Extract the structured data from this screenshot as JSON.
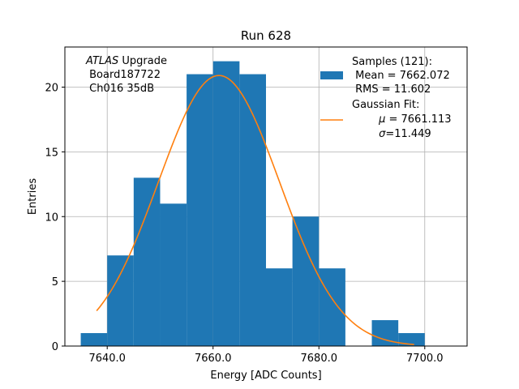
{
  "chart_data": {
    "type": "bar",
    "title": "Run 628",
    "xlabel": "Energy [ADC Counts]",
    "ylabel": "Entries",
    "xlim": [
      7632,
      7708
    ],
    "ylim": [
      0,
      23.1
    ],
    "grid": true,
    "x_ticks": [
      7640,
      7660,
      7680,
      7700
    ],
    "x_tick_labels": [
      "7640.0",
      "7660.0",
      "7680.0",
      "7700.0"
    ],
    "y_ticks": [
      0,
      5,
      10,
      15,
      20
    ],
    "y_tick_labels": [
      "0",
      "5",
      "10",
      "15",
      "20"
    ],
    "bin_edges": [
      7635,
      7640,
      7645,
      7650,
      7655,
      7660,
      7665,
      7670,
      7675,
      7680,
      7685,
      7690,
      7695,
      7700,
      7705
    ],
    "values": [
      1,
      7,
      13,
      11,
      21,
      22,
      21,
      6,
      10,
      6,
      0,
      2,
      1,
      0
    ],
    "bar_color": "#1f77b4",
    "fit": {
      "mu": 7661.113,
      "sigma": 11.449,
      "amplitude": 20.9,
      "x_range": [
        7638,
        7698
      ],
      "color": "#ff7f0e"
    },
    "annotation": {
      "line1_italic": "ATLAS",
      "line1_rest": " Upgrade",
      "line2": " Board187722",
      "line3": " Ch016 35dB"
    },
    "legend": {
      "position": "top-right",
      "hist_lines": [
        "Samples (121):",
        " Mean = 7662.072",
        " RMS = 11.602"
      ],
      "fit_title": "Gaussian Fit:",
      "fit_mu_symbol": "μ",
      "fit_mu_value": " = 7661.113",
      "fit_sigma_symbol": "σ",
      "fit_sigma_value": "=11.449"
    }
  }
}
